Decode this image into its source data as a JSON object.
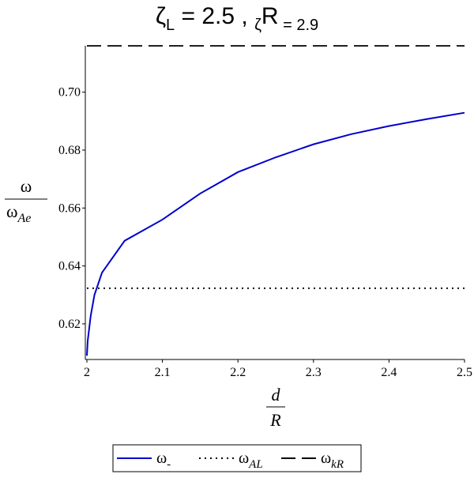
{
  "chart_data": {
    "type": "line",
    "title": [
      "ζ",
      "L",
      " = 2.5  ,  ",
      "ζ",
      "R",
      " = 2.9"
    ],
    "x_label": {
      "numerator": "d",
      "denominator": "R"
    },
    "y_label": {
      "numerator": "ω",
      "denominator": "ω",
      "denominator_subscript": "Ae"
    },
    "xlim": [
      2,
      2.5
    ],
    "xticks": [
      2,
      2.1,
      2.2,
      2.3,
      2.4,
      2.5
    ],
    "ylim": [
      0.6077,
      0.716
    ],
    "yticks": [
      {
        "value": 0.62,
        "label": "0.62"
      },
      {
        "value": 0.64,
        "label": "0.64"
      },
      {
        "value": 0.66,
        "label": "0.66"
      },
      {
        "value": 0.68,
        "label": "0.68"
      },
      {
        "value": 0.7,
        "label": "0.70"
      }
    ],
    "series": [
      {
        "name": "ω",
        "subscript": "-",
        "color": "#0000cc",
        "style": "solid",
        "x": [
          2.0,
          2.001,
          2.005,
          2.01,
          2.02,
          2.05,
          2.1,
          2.15,
          2.2,
          2.25,
          2.3,
          2.35,
          2.4,
          2.45,
          2.5
        ],
        "values": [
          0.609,
          0.614,
          0.6227,
          0.63,
          0.6377,
          0.6487,
          0.656,
          0.665,
          0.6724,
          0.6775,
          0.682,
          0.6855,
          0.6883,
          0.6907,
          0.6929
        ]
      },
      {
        "name": "ω",
        "subscript": "AL",
        "color": "#000000",
        "style": "dotted",
        "x": [
          2,
          2.5
        ],
        "values": [
          0.6323,
          0.6323
        ]
      },
      {
        "name": "ω",
        "subscript": "kR",
        "color": "#000000",
        "style": "dashed",
        "x": [
          2,
          2.5
        ],
        "values": [
          0.716,
          0.716
        ]
      }
    ]
  }
}
